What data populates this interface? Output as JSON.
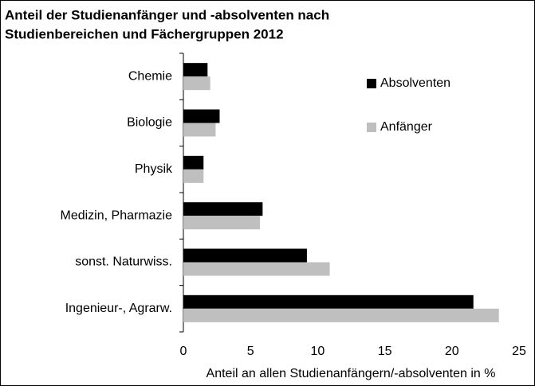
{
  "chart_data": {
    "type": "hbar",
    "title_lines": [
      "Anteil der Studienanfänger und -absolventen nach",
      "Studienbereichen und Fächergruppen 2012"
    ],
    "categories": [
      "Chemie",
      "Biologie",
      "Physik",
      "Medizin, Pharmazie",
      "sonst. Naturwiss.",
      "Ingenieur-, Agrarw."
    ],
    "series": [
      {
        "name": "Absolventen",
        "color": "#000000",
        "values": [
          1.8,
          2.7,
          1.5,
          5.9,
          9.2,
          21.6
        ]
      },
      {
        "name": "Anfänger",
        "color": "#bfbfbf",
        "values": [
          2.0,
          2.4,
          1.5,
          5.7,
          10.9,
          23.5
        ]
      }
    ],
    "xlim": [
      0,
      25
    ],
    "xticks": [
      0,
      5,
      10,
      15,
      20,
      25
    ],
    "xlabel": "Anteil an allen Studienanfängern/-absolventen in %",
    "grid": false,
    "legend": "upper right"
  }
}
